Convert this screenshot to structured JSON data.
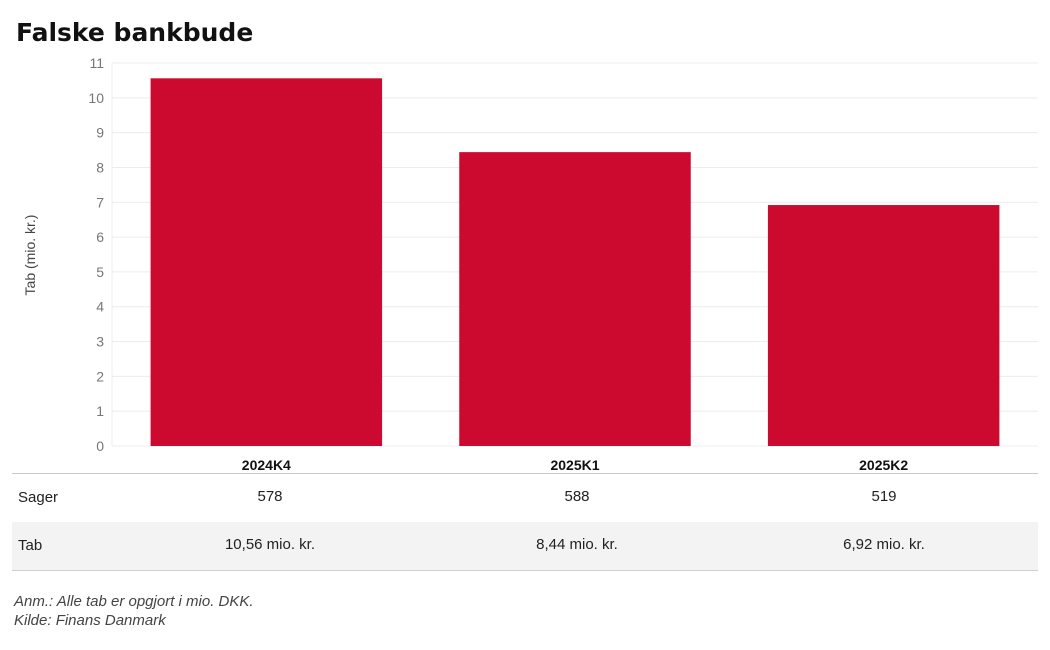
{
  "title": "Falske bankbude",
  "chart_data": {
    "type": "bar",
    "title": "Falske bankbude",
    "xlabel": "",
    "ylabel": "Tab (mio. kr.)",
    "ylim": [
      0,
      11
    ],
    "yticks": [
      0,
      1,
      2,
      3,
      4,
      5,
      6,
      7,
      8,
      9,
      10,
      11
    ],
    "grid": true,
    "categories": [
      "2024K4",
      "2025K1",
      "2025K2"
    ],
    "values": [
      10.56,
      8.44,
      6.92
    ],
    "bar_color": "#cc0a2f"
  },
  "table": {
    "rows": [
      {
        "label": "Sager",
        "values": [
          "578",
          "588",
          "519"
        ]
      },
      {
        "label": "Tab",
        "values": [
          "10,56 mio. kr.",
          "8,44 mio. kr.",
          "6,92 mio. kr."
        ]
      }
    ]
  },
  "notes": {
    "note": "Anm.: Alle tab er opgjort i mio. DKK.",
    "source": "Kilde: Finans Danmark"
  }
}
